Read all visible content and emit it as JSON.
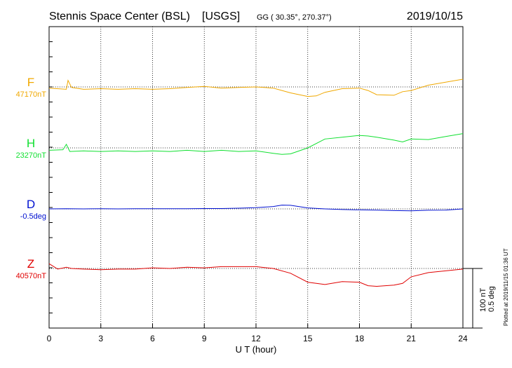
{
  "header": {
    "station": "Stennis Space Center (BSL)",
    "network": "[USGS]",
    "coords": "GG ( 30.35°, 270.37°)",
    "date": "2019/10/15"
  },
  "footer": {
    "plotted": "Plotted at 2019/11/15 01:36 UT"
  },
  "colors": {
    "F": "#f0a800",
    "H": "#10e030",
    "D": "#0010d0",
    "Z": "#e00000",
    "axis": "#000000"
  },
  "chart_data": {
    "type": "line",
    "title": "Stennis Space Center (BSL)  [USGS]",
    "xlabel": "U T (hour)",
    "xlim": [
      0,
      24
    ],
    "x_ticks": [
      "0",
      "3",
      "6",
      "9",
      "12",
      "15",
      "18",
      "21",
      "24"
    ],
    "grid": true,
    "scale": {
      "nT_label": "100 nT",
      "deg_label": "0.5 deg"
    },
    "series": [
      {
        "name": "F",
        "baseline_label": "47170nT",
        "x": [
          0,
          1,
          1.1,
          1.3,
          2,
          3,
          4,
          5,
          6,
          7,
          8,
          9,
          10,
          11,
          12,
          13,
          14,
          15,
          15.5,
          16,
          17,
          18,
          18.5,
          19,
          20,
          20.5,
          21,
          22,
          23,
          24
        ],
        "y": [
          47168,
          47166,
          47181,
          47169,
          47166,
          47167,
          47166,
          47167,
          47166,
          47167,
          47169,
          47171,
          47168,
          47169,
          47170,
          47168,
          47160,
          47154,
          47155,
          47161,
          47167,
          47168,
          47164,
          47157,
          47156,
          47162,
          47164,
          47173,
          47178,
          47183
        ]
      },
      {
        "name": "H",
        "baseline_label": "23270nT",
        "x": [
          0,
          0.8,
          1,
          1.2,
          2,
          3,
          4,
          5,
          6,
          7,
          8,
          9,
          10,
          11,
          12,
          13,
          13.5,
          14,
          15,
          16,
          17,
          18,
          18.5,
          19,
          20,
          20.5,
          21,
          22,
          23,
          24
        ],
        "y": [
          23266,
          23267,
          23276,
          23264,
          23265,
          23264,
          23265,
          23264,
          23265,
          23264,
          23266,
          23264,
          23266,
          23264,
          23265,
          23261,
          23259,
          23260,
          23270,
          23285,
          23288,
          23291,
          23290,
          23288,
          23283,
          23280,
          23285,
          23284,
          23289,
          23294
        ]
      },
      {
        "name": "D",
        "baseline_label": "-0.5deg",
        "x": [
          0,
          1,
          2,
          3,
          4,
          5,
          6,
          7,
          8,
          9,
          10,
          11,
          12,
          13,
          13.5,
          14,
          15,
          16,
          17,
          18,
          19,
          20,
          21,
          22,
          23,
          24
        ],
        "y": [
          -0.5,
          -0.498,
          -0.5,
          -0.499,
          -0.5,
          -0.498,
          -0.499,
          -0.498,
          -0.498,
          -0.497,
          -0.497,
          -0.494,
          -0.49,
          -0.48,
          -0.468,
          -0.47,
          -0.492,
          -0.5,
          -0.505,
          -0.508,
          -0.51,
          -0.514,
          -0.516,
          -0.511,
          -0.51,
          -0.5
        ]
      },
      {
        "name": "Z",
        "baseline_label": "40570nT",
        "x": [
          0,
          0.5,
          1,
          1.3,
          2,
          3,
          4,
          5,
          6,
          7,
          8,
          9,
          10,
          11,
          12,
          13,
          14,
          15,
          16,
          17,
          18,
          18.5,
          19,
          20,
          20.5,
          21,
          22,
          23,
          24
        ],
        "y": [
          40578,
          40569,
          40572,
          40570,
          40569,
          40568,
          40569,
          40569,
          40571,
          40570,
          40572,
          40571,
          40573,
          40573,
          40573,
          40570,
          40562,
          40547,
          40543,
          40548,
          40547,
          40541,
          40540,
          40542,
          40545,
          40556,
          40563,
          40566,
          40569
        ]
      }
    ]
  }
}
